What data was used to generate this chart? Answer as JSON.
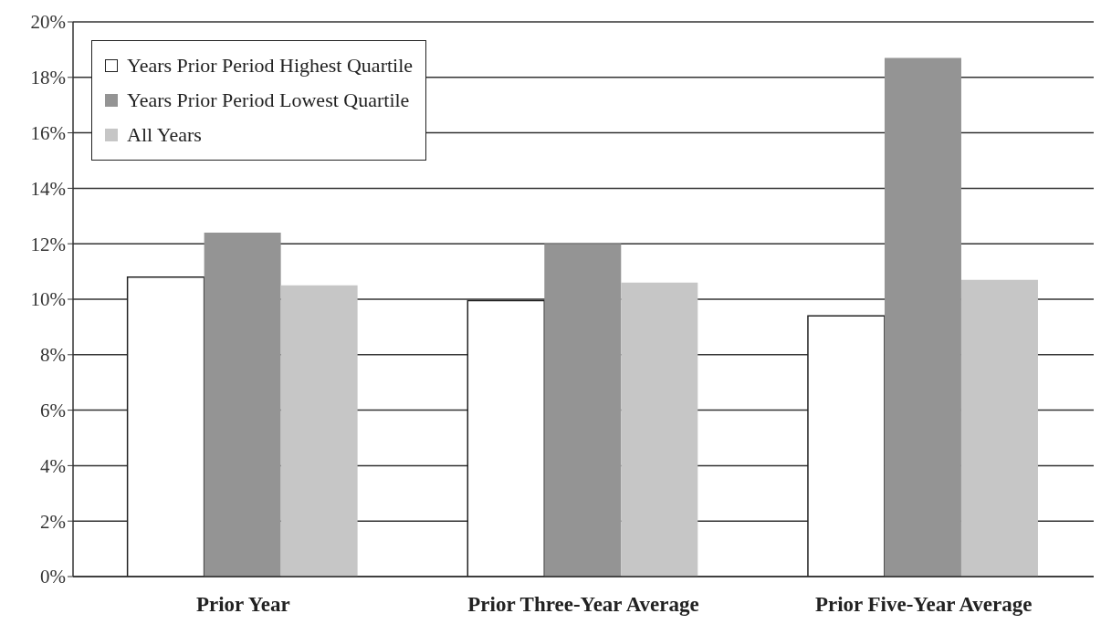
{
  "chart_data": {
    "type": "bar",
    "categories": [
      "Prior Year",
      "Prior Three-Year Average",
      "Prior  Five-Year Average"
    ],
    "series": [
      {
        "name": "Years Prior Period Highest Quartile",
        "color": "#ffffff",
        "values": [
          10.8,
          9.95,
          9.4
        ]
      },
      {
        "name": "Years Prior Period Lowest Quartile",
        "color": "#949494",
        "values": [
          12.4,
          12.0,
          18.7
        ]
      },
      {
        "name": "All Years",
        "color": "#c6c6c6",
        "values": [
          10.5,
          10.6,
          10.7
        ]
      }
    ],
    "ylim": [
      0,
      20
    ],
    "yticks": [
      {
        "value": 0,
        "label": "0%"
      },
      {
        "value": 2,
        "label": "2%"
      },
      {
        "value": 4,
        "label": "4%"
      },
      {
        "value": 6,
        "label": "6%"
      },
      {
        "value": 8,
        "label": "8%"
      },
      {
        "value": 10,
        "label": "10%"
      },
      {
        "value": 12,
        "label": "12%"
      },
      {
        "value": 14,
        "label": "14%"
      },
      {
        "value": 16,
        "label": "16%"
      },
      {
        "value": 18,
        "label": "18%"
      },
      {
        "value": 20,
        "label": "20%"
      }
    ],
    "grid": "y",
    "legend": "top left"
  }
}
